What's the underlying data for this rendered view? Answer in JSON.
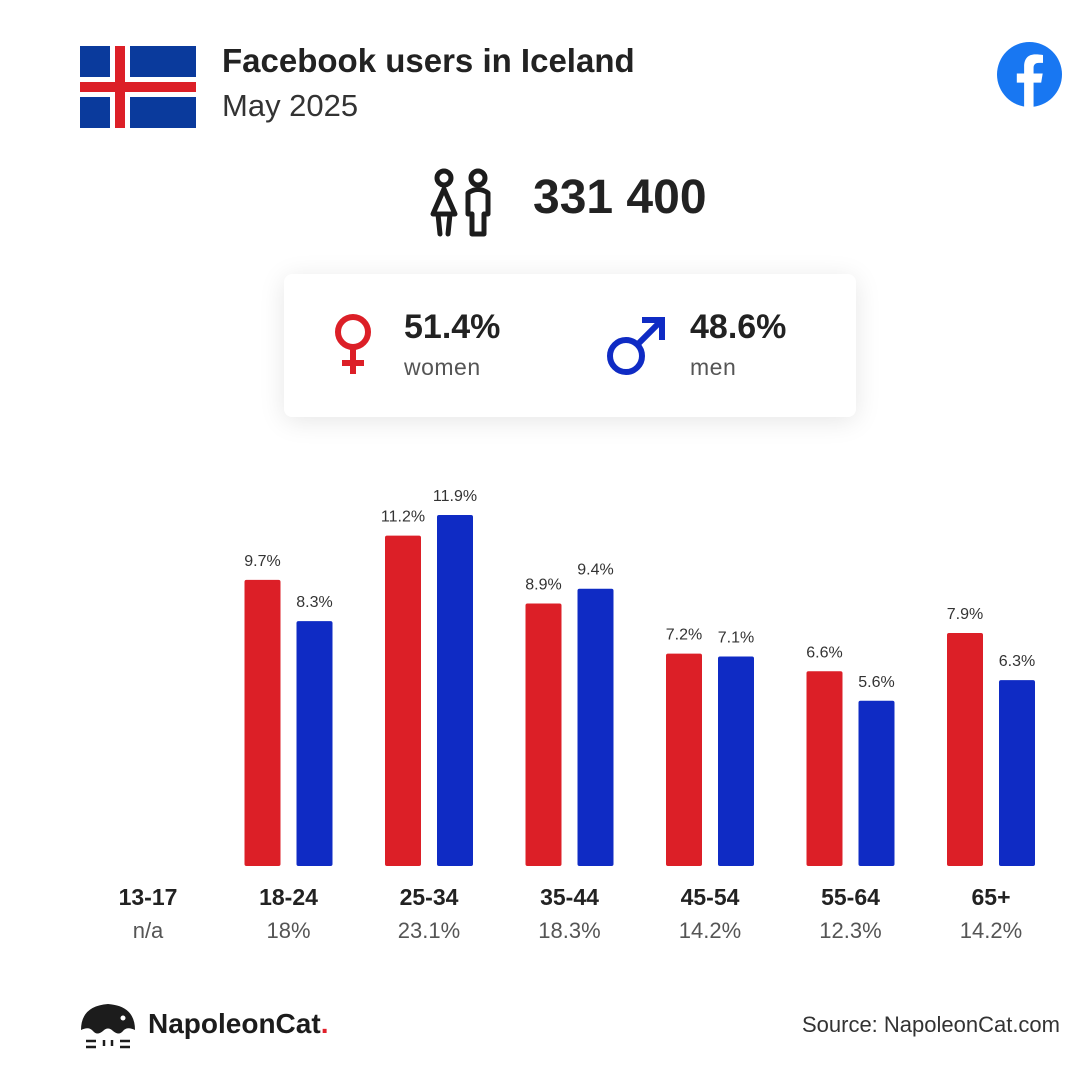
{
  "header": {
    "title": "Facebook users in Iceland",
    "subtitle": "May 2025"
  },
  "summary": {
    "total_users": "331 400",
    "women_pct": "51.4%",
    "women_label": "women",
    "men_pct": "48.6%",
    "men_label": "men"
  },
  "icons": {
    "flag": "iceland-flag-icon",
    "platform": "facebook-icon",
    "users": "people-icon",
    "female": "female-symbol-icon",
    "male": "male-symbol-icon",
    "brand": "napoleoncat-logo-icon"
  },
  "colors": {
    "women": "#dc1f27",
    "men": "#0f2bc4",
    "facebook": "#1877f2",
    "flag_blue": "#0a3a9c",
    "flag_red": "#dc1f27"
  },
  "chart_data": {
    "type": "bar",
    "title": "",
    "xlabel": "",
    "ylabel": "",
    "categories": [
      "13-17",
      "18-24",
      "25-34",
      "35-44",
      "45-54",
      "55-64",
      "65+"
    ],
    "category_totals": [
      "n/a",
      "18%",
      "23.1%",
      "18.3%",
      "14.2%",
      "12.3%",
      "14.2%"
    ],
    "series": [
      {
        "values": [
          null,
          9.7,
          11.2,
          8.9,
          7.2,
          6.6,
          7.9
        ],
        "labels": [
          "",
          "9.7%",
          "11.2%",
          "8.9%",
          "7.2%",
          "6.6%",
          "7.9%"
        ],
        "color": "#dc1f27"
      },
      {
        "values": [
          null,
          8.3,
          11.9,
          9.4,
          7.1,
          5.6,
          6.3
        ],
        "labels": [
          "",
          "8.3%",
          "11.9%",
          "9.4%",
          "7.1%",
          "5.6%",
          "6.3%"
        ],
        "color": "#0f2bc4"
      }
    ],
    "ylim": [
      0,
      12
    ],
    "grid": false,
    "legend": "none"
  },
  "footer": {
    "brand_name": "NapoleonCat",
    "brand_dot": ".",
    "source": "Source: NapoleonCat.com"
  }
}
